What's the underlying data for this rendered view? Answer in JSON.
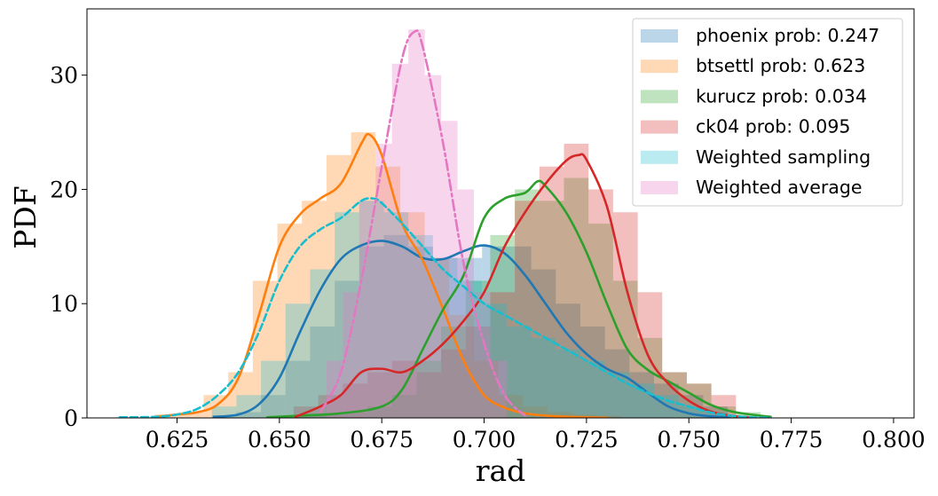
{
  "chart_data": {
    "type": "histogram-kde",
    "title": "",
    "xlabel": "rad",
    "ylabel": "PDF",
    "xlim": [
      0.603,
      0.805
    ],
    "ylim": [
      0,
      35.8
    ],
    "xticks": [
      0.625,
      0.65,
      0.675,
      0.7,
      0.725,
      0.75,
      0.775,
      0.8
    ],
    "xtick_labels": [
      "0.625",
      "0.650",
      "0.675",
      "0.700",
      "0.725",
      "0.750",
      "0.775",
      "0.800"
    ],
    "yticks": [
      0,
      10,
      20,
      30
    ],
    "ytick_labels": [
      "0",
      "10",
      "20",
      "30"
    ],
    "legend_position": "upper right",
    "series": [
      {
        "name": "phoenix prob: 0.247",
        "color": "#1f77b4",
        "curve_style": "solid",
        "bin_edges": [
          0.6335,
          0.6395,
          0.6455,
          0.6515,
          0.6575,
          0.6635,
          0.6695,
          0.6755,
          0.6815,
          0.6875,
          0.6935,
          0.6995,
          0.7055,
          0.7115,
          0.7175,
          0.7235,
          0.7295,
          0.7355,
          0.7415,
          0.7475,
          0.7535,
          0.7595
        ],
        "hist": [
          0.2,
          0.5,
          2,
          5,
          8,
          12,
          15,
          16,
          15,
          14,
          14,
          15,
          15,
          13,
          10,
          8,
          6,
          4,
          3,
          2,
          1
        ],
        "kde_x": [
          0.634,
          0.64,
          0.645,
          0.65,
          0.655,
          0.66,
          0.665,
          0.67,
          0.675,
          0.68,
          0.685,
          0.69,
          0.695,
          0.7,
          0.705,
          0.71,
          0.715,
          0.72,
          0.725,
          0.73,
          0.735,
          0.74,
          0.745,
          0.75,
          0.755,
          0.76
        ],
        "kde_y": [
          0.1,
          0.3,
          1.2,
          3.5,
          7.5,
          11.2,
          13.9,
          15.1,
          15.5,
          15.0,
          14.0,
          13.9,
          14.6,
          15.1,
          14.4,
          12.5,
          10.0,
          7.5,
          5.6,
          4.3,
          3.5,
          2.2,
          1.0,
          0.4,
          0.15,
          0.05
        ]
      },
      {
        "name": "btsettl prob: 0.623",
        "color": "#ff7f0e",
        "curve_style": "solid",
        "bin_edges": [
          0.6195,
          0.6255,
          0.6315,
          0.6375,
          0.6435,
          0.6495,
          0.6555,
          0.6615,
          0.6675,
          0.6735,
          0.6795,
          0.6855,
          0.6915,
          0.6975,
          0.7035,
          0.7095,
          0.7155,
          0.7215,
          0.7275,
          0.7335
        ],
        "hist": [
          0.3,
          0.5,
          2,
          4,
          12,
          17,
          19,
          23,
          25,
          22,
          18,
          14,
          9,
          5,
          2,
          1,
          0.5,
          0.3,
          0.2
        ],
        "kde_x": [
          0.62,
          0.625,
          0.63,
          0.635,
          0.64,
          0.645,
          0.65,
          0.655,
          0.66,
          0.665,
          0.67,
          0.672,
          0.675,
          0.68,
          0.685,
          0.69,
          0.695,
          0.7,
          0.705,
          0.71,
          0.715,
          0.72,
          0.725,
          0.73
        ],
        "kde_y": [
          0.1,
          0.3,
          0.5,
          1.2,
          3.5,
          9.0,
          15.0,
          17.8,
          19.2,
          20.5,
          24.0,
          24.8,
          23.0,
          17.0,
          13.8,
          9.5,
          5.0,
          2.0,
          0.9,
          0.4,
          0.2,
          0.1,
          0.05,
          0.02
        ]
      },
      {
        "name": "kurucz prob: 0.034",
        "color": "#2ca02c",
        "curve_style": "solid",
        "bin_edges": [
          0.6475,
          0.6535,
          0.6595,
          0.6655,
          0.6715,
          0.6775,
          0.6835,
          0.6895,
          0.6955,
          0.7015,
          0.7075,
          0.7135,
          0.7195,
          0.7255,
          0.7315,
          0.7375,
          0.7435,
          0.7495,
          0.7555,
          0.7615,
          0.7675
        ],
        "hist": [
          0.2,
          0.2,
          0.3,
          0.5,
          1,
          2,
          5,
          8,
          12,
          16,
          20,
          19,
          21,
          17,
          12,
          7,
          4,
          3,
          1,
          0.5
        ],
        "kde_x": [
          0.647,
          0.655,
          0.665,
          0.675,
          0.68,
          0.685,
          0.69,
          0.695,
          0.7,
          0.705,
          0.71,
          0.713,
          0.715,
          0.72,
          0.725,
          0.73,
          0.735,
          0.74,
          0.745,
          0.75,
          0.755,
          0.76,
          0.765,
          0.77
        ],
        "kde_y": [
          0.05,
          0.2,
          0.4,
          1.0,
          2.5,
          6.0,
          9.5,
          12.5,
          17.5,
          19.2,
          19.7,
          20.7,
          20.3,
          18.0,
          14.5,
          10.0,
          6.0,
          4.2,
          3.2,
          2.2,
          1.2,
          0.6,
          0.3,
          0.1
        ]
      },
      {
        "name": "ck04 prob: 0.095",
        "color": "#d62728",
        "curve_style": "solid",
        "bin_edges": [
          0.6535,
          0.6595,
          0.6655,
          0.6715,
          0.6775,
          0.6835,
          0.6895,
          0.6955,
          0.7015,
          0.7075,
          0.7135,
          0.7195,
          0.7255,
          0.7315,
          0.7375,
          0.7435,
          0.7495,
          0.7555,
          0.7615
        ],
        "hist": [
          1,
          2,
          3,
          4,
          5,
          4,
          6,
          8,
          11,
          19,
          22,
          24,
          20,
          18,
          11,
          4,
          3,
          2
        ],
        "kde_x": [
          0.654,
          0.66,
          0.665,
          0.67,
          0.675,
          0.68,
          0.685,
          0.69,
          0.695,
          0.7,
          0.705,
          0.71,
          0.715,
          0.72,
          0.723,
          0.725,
          0.73,
          0.735,
          0.74,
          0.745,
          0.75,
          0.755,
          0.76,
          0.765
        ],
        "kde_y": [
          0.1,
          1.0,
          2.0,
          4.0,
          4.3,
          4.0,
          5.0,
          6.5,
          8.5,
          11.0,
          15.0,
          18.0,
          20.5,
          22.5,
          23.0,
          22.6,
          18.5,
          11.0,
          5.5,
          3.0,
          1.5,
          0.6,
          0.2,
          0.05
        ]
      },
      {
        "name": "Weighted sampling",
        "color": "#17becf",
        "curve_style": "dashed",
        "bin_edges": [
          0.6335,
          0.6395,
          0.6455,
          0.6515,
          0.6575,
          0.6635,
          0.6695,
          0.6755,
          0.6815,
          0.6875,
          0.6935,
          0.6995,
          0.7055,
          0.7115,
          0.7175,
          0.7235,
          0.7295,
          0.7355,
          0.7415,
          0.7475,
          0.7535,
          0.7595
        ],
        "hist": [
          1,
          2,
          5,
          10,
          13,
          18,
          19,
          18,
          16,
          14,
          12,
          10,
          8,
          7,
          6,
          5,
          4,
          3,
          2,
          1,
          0.5
        ],
        "kde_x": [
          0.611,
          0.62,
          0.625,
          0.63,
          0.635,
          0.64,
          0.645,
          0.65,
          0.655,
          0.66,
          0.665,
          0.67,
          0.673,
          0.675,
          0.68,
          0.685,
          0.69,
          0.695,
          0.7,
          0.705,
          0.71,
          0.715,
          0.72,
          0.725,
          0.73,
          0.735,
          0.74,
          0.745,
          0.75,
          0.755,
          0.76,
          0.765,
          0.77
        ],
        "kde_y": [
          0.05,
          0.1,
          0.3,
          0.8,
          2.0,
          4.0,
          7.5,
          12.0,
          15.0,
          16.5,
          17.5,
          19.0,
          19.2,
          18.8,
          17.0,
          15.0,
          13.0,
          11.5,
          10.0,
          9.0,
          8.0,
          7.0,
          6.0,
          5.0,
          4.0,
          3.0,
          2.2,
          1.5,
          1.0,
          0.5,
          0.2,
          0.05,
          0.02
        ]
      },
      {
        "name": "Weighted average",
        "color": "#e377c2",
        "curve_style": "dashdot",
        "bin_edges": [
          0.6615,
          0.6655,
          0.6695,
          0.6735,
          0.6775,
          0.6815,
          0.6855,
          0.6895,
          0.6935,
          0.6975,
          0.7015,
          0.7055
        ],
        "hist": [
          5,
          11,
          19,
          24,
          31,
          34,
          30,
          26,
          20,
          11,
          5
        ],
        "kde_x": [
          0.66,
          0.665,
          0.67,
          0.675,
          0.68,
          0.683,
          0.685,
          0.69,
          0.695,
          0.7,
          0.705,
          0.71
        ],
        "kde_y": [
          0.5,
          4.0,
          12.0,
          22.0,
          31.5,
          33.8,
          32.5,
          24.0,
          13.5,
          6.5,
          2.0,
          0.2
        ]
      }
    ]
  }
}
